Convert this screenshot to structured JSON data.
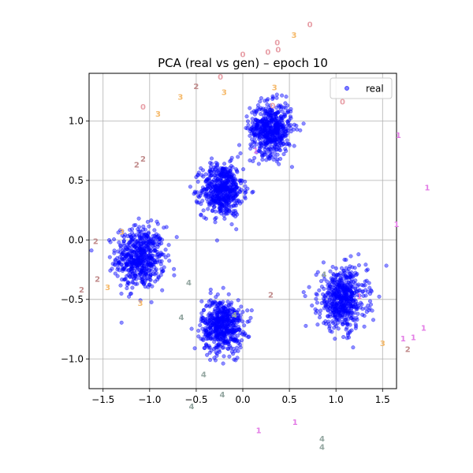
{
  "chart_data": {
    "type": "scatter",
    "title": "PCA (real vs gen) – epoch 10",
    "xlabel": "",
    "ylabel": "",
    "xlim": [
      -1.65,
      1.65
    ],
    "ylim": [
      -1.25,
      1.4
    ],
    "xticks": [
      -1.5,
      -1.0,
      -0.5,
      0.0,
      0.5,
      1.0,
      1.5
    ],
    "xtick_labels": [
      "−1.5",
      "−1.0",
      "−0.5",
      "0.0",
      "0.5",
      "1.0",
      "1.5"
    ],
    "yticks": [
      -1.0,
      -0.5,
      0.0,
      0.5,
      1.0
    ],
    "ytick_labels": [
      "−1.0",
      "−0.5",
      "0.0",
      "0.5",
      "1.0"
    ],
    "grid": true,
    "legend": {
      "placement": "top-right",
      "entries": [
        "real"
      ]
    },
    "series": [
      {
        "name": "real",
        "kind": "point-clusters",
        "color": "#0000ff",
        "clusters": [
          {
            "center": [
              -1.1,
              -0.15
            ],
            "spread": 0.13,
            "count": 560
          },
          {
            "center": [
              -0.22,
              0.42
            ],
            "spread": 0.11,
            "count": 560
          },
          {
            "center": [
              0.3,
              0.93
            ],
            "spread": 0.11,
            "count": 560
          },
          {
            "center": [
              -0.22,
              -0.72
            ],
            "spread": 0.11,
            "count": 560
          },
          {
            "center": [
              1.07,
              -0.5
            ],
            "spread": 0.13,
            "count": 560
          }
        ]
      }
    ],
    "generated_labels": {
      "colors": {
        "0": "#e8a0a8",
        "1": "#e37ce6",
        "2": "#c08a8a",
        "3": "#f5b96a",
        "4": "#93a6a0"
      },
      "points": [
        {
          "digit": "0",
          "x": 0.72,
          "y": 1.81
        },
        {
          "digit": "0",
          "x": 0.37,
          "y": 1.66
        },
        {
          "digit": "0",
          "x": 0.38,
          "y": 1.6
        },
        {
          "digit": "0",
          "x": 0.27,
          "y": 1.58
        },
        {
          "digit": "0",
          "x": 0.0,
          "y": 1.56
        },
        {
          "digit": "0",
          "x": -0.24,
          "y": 1.37
        },
        {
          "digit": "0",
          "x": -1.07,
          "y": 1.12
        },
        {
          "digit": "0",
          "x": 1.07,
          "y": 1.16
        },
        {
          "digit": "0",
          "x": 0.32,
          "y": 1.13
        },
        {
          "digit": "3",
          "x": 0.55,
          "y": 1.72
        },
        {
          "digit": "3",
          "x": 0.34,
          "y": 1.28
        },
        {
          "digit": "3",
          "x": -0.2,
          "y": 1.24
        },
        {
          "digit": "3",
          "x": -0.67,
          "y": 1.2
        },
        {
          "digit": "3",
          "x": -0.91,
          "y": 1.06
        },
        {
          "digit": "3",
          "x": -1.3,
          "y": 0.07
        },
        {
          "digit": "3",
          "x": -1.45,
          "y": -0.4
        },
        {
          "digit": "3",
          "x": -1.1,
          "y": -0.53
        },
        {
          "digit": "3",
          "x": 1.5,
          "y": -0.87
        },
        {
          "digit": "2",
          "x": -0.5,
          "y": 1.29
        },
        {
          "digit": "2",
          "x": -1.07,
          "y": 0.68
        },
        {
          "digit": "2",
          "x": -1.14,
          "y": 0.63
        },
        {
          "digit": "2",
          "x": -1.58,
          "y": -0.01
        },
        {
          "digit": "2",
          "x": -1.56,
          "y": -0.33
        },
        {
          "digit": "2",
          "x": -1.73,
          "y": -0.42
        },
        {
          "digit": "2",
          "x": 0.3,
          "y": -0.46
        },
        {
          "digit": "2",
          "x": 1.77,
          "y": -0.92
        },
        {
          "digit": "1",
          "x": 1.67,
          "y": 0.88
        },
        {
          "digit": "1",
          "x": 1.98,
          "y": 0.44
        },
        {
          "digit": "1",
          "x": 1.65,
          "y": 0.13
        },
        {
          "digit": "1",
          "x": 1.94,
          "y": -0.74
        },
        {
          "digit": "1",
          "x": 1.83,
          "y": -0.82
        },
        {
          "digit": "1",
          "x": 1.72,
          "y": -0.83
        },
        {
          "digit": "1",
          "x": 1.25,
          "y": -0.47
        },
        {
          "digit": "1",
          "x": 0.14,
          "y": 0.75
        },
        {
          "digit": "1",
          "x": 0.56,
          "y": -1.53
        },
        {
          "digit": "1",
          "x": 0.17,
          "y": -1.6
        },
        {
          "digit": "4",
          "x": -0.58,
          "y": -0.36
        },
        {
          "digit": "4",
          "x": -0.66,
          "y": -0.65
        },
        {
          "digit": "4",
          "x": 0.87,
          "y": -0.29
        },
        {
          "digit": "4",
          "x": -0.09,
          "y": -0.63
        },
        {
          "digit": "4",
          "x": -0.42,
          "y": -1.13
        },
        {
          "digit": "4",
          "x": -0.22,
          "y": -1.3
        },
        {
          "digit": "4",
          "x": -0.55,
          "y": -1.4
        },
        {
          "digit": "4",
          "x": 0.85,
          "y": -1.67
        },
        {
          "digit": "4",
          "x": 0.85,
          "y": -1.74
        }
      ]
    }
  }
}
